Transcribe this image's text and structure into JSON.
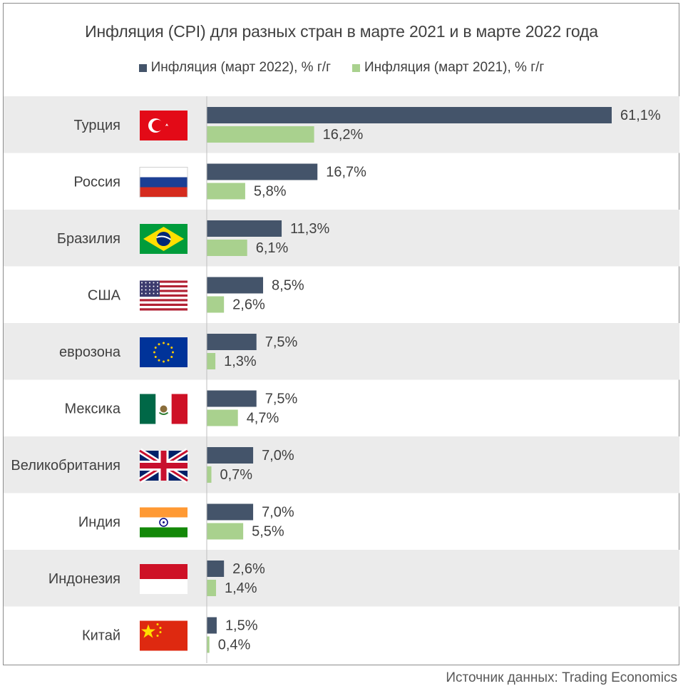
{
  "colors": {
    "series_2022": "#44546a",
    "series_2021": "#a9d18e",
    "band": "#ebebeb",
    "text": "#404040"
  },
  "chart_data": {
    "type": "bar",
    "orientation": "horizontal",
    "title": "Инфляция (CPI) для разных стран в марте 2021 и в марте 2022 года",
    "categories": [
      "Турция",
      "Россия",
      "Бразилия",
      "США",
      "еврозона",
      "Мексика",
      "Великобритания",
      "Индия",
      "Индонезия",
      "Китай"
    ],
    "flags": [
      "turkey-flag-icon",
      "russia-flag-icon",
      "brazil-flag-icon",
      "usa-flag-icon",
      "eu-flag-icon",
      "mexico-flag-icon",
      "uk-flag-icon",
      "india-flag-icon",
      "indonesia-flag-icon",
      "china-flag-icon"
    ],
    "series": [
      {
        "name": "Инфляция (март 2022), % г/г",
        "values": [
          61.1,
          16.7,
          11.3,
          8.5,
          7.5,
          7.5,
          7.0,
          7.0,
          2.6,
          1.5
        ],
        "labels": [
          "61,1%",
          "16,7%",
          "11,3%",
          "8,5%",
          "7,5%",
          "7,5%",
          "7,0%",
          "7,0%",
          "2,6%",
          "1,5%"
        ]
      },
      {
        "name": "Инфляция (март 2021), % г/г",
        "values": [
          16.2,
          5.8,
          6.1,
          2.6,
          1.3,
          4.7,
          0.7,
          5.5,
          1.4,
          0.4
        ],
        "labels": [
          "16,2%",
          "5,8%",
          "6,1%",
          "2,6%",
          "1,3%",
          "4,7%",
          "0,7%",
          "5,5%",
          "1,4%",
          "0,4%"
        ]
      }
    ],
    "xlim": [
      0,
      61.1
    ],
    "grid": false,
    "legend": "top-center"
  },
  "source": "Источник данных: Trading Economics"
}
